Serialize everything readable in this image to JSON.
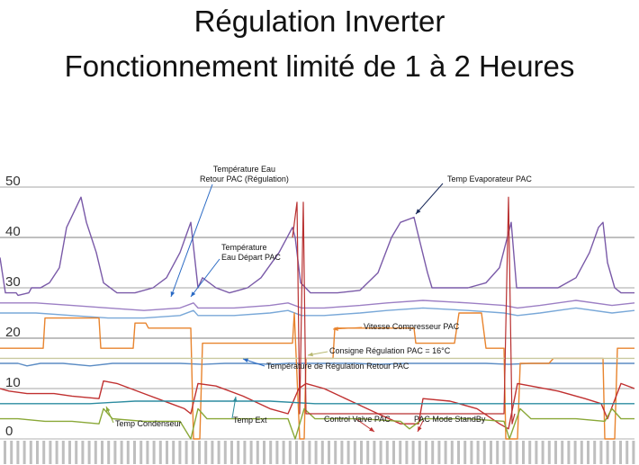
{
  "title_line1": "Régulation Inverter",
  "title_line2": "Fonctionnement limité de 1 à 2 Heures",
  "chart_data": {
    "type": "line",
    "ylim": [
      0,
      50
    ],
    "y_ticks": [
      0,
      10,
      20,
      30,
      40,
      50
    ],
    "grid": true,
    "annotations": {
      "temp_eau_retour": "Température Eau\nRetour PAC (Régulation)",
      "temp_evaporateur": "Temp Evaporateur PAC",
      "temp_eau_depart": "Température\nEau Départ PAC",
      "vitesse_compresseur": "Vitesse Compresseur PAC",
      "consigne": "Consigne Régulation PAC = 16°C",
      "temp_regulation_retour": "Température de Régulation Retour PAC",
      "temp_condenseur": "Temp Condenseur",
      "temp_ext": "Temp Ext",
      "control_valve": "Control Valve PAC",
      "mode_standby": "PAC Mode StandBy"
    },
    "series": [
      {
        "key": "evap",
        "color": "#7a5aa8",
        "points": [
          [
            0,
            36
          ],
          [
            6,
            29
          ],
          [
            18,
            29
          ],
          [
            20,
            28.5
          ],
          [
            32,
            29
          ],
          [
            35,
            30
          ],
          [
            45,
            30
          ],
          [
            55,
            31
          ],
          [
            66,
            34
          ],
          [
            74,
            42
          ],
          [
            90,
            48
          ],
          [
            96,
            43
          ],
          [
            107,
            37
          ],
          [
            115,
            31
          ],
          [
            130,
            29
          ],
          [
            150,
            29
          ],
          [
            170,
            30
          ],
          [
            185,
            32
          ],
          [
            200,
            37
          ],
          [
            208,
            41
          ],
          [
            212,
            43
          ],
          [
            220,
            30
          ],
          [
            225,
            32
          ],
          [
            240,
            30
          ],
          [
            255,
            29
          ],
          [
            265,
            29.5
          ],
          [
            275,
            30
          ],
          [
            290,
            32
          ],
          [
            310,
            37
          ],
          [
            325,
            42
          ],
          [
            328,
            40
          ],
          [
            334,
            31
          ],
          [
            345,
            29
          ],
          [
            360,
            29
          ],
          [
            375,
            29
          ],
          [
            400,
            29.5
          ],
          [
            420,
            33
          ],
          [
            435,
            40
          ],
          [
            445,
            43
          ],
          [
            460,
            44
          ],
          [
            464,
            41
          ],
          [
            475,
            33
          ],
          [
            480,
            30
          ],
          [
            495,
            30
          ],
          [
            520,
            30
          ],
          [
            540,
            31
          ],
          [
            555,
            34
          ],
          [
            568,
            43
          ],
          [
            574,
            30
          ],
          [
            590,
            30
          ],
          [
            605,
            30
          ],
          [
            620,
            30
          ],
          [
            640,
            32
          ],
          [
            655,
            37
          ],
          [
            665,
            42
          ],
          [
            670,
            43
          ],
          [
            675,
            35
          ],
          [
            683,
            30
          ],
          [
            690,
            29
          ],
          [
            705,
            29
          ]
        ]
      },
      {
        "key": "depart",
        "color": "#9c7fc4",
        "points": [
          [
            0,
            27
          ],
          [
            40,
            27
          ],
          [
            80,
            26.5
          ],
          [
            120,
            26
          ],
          [
            160,
            25.5
          ],
          [
            200,
            26
          ],
          [
            215,
            27
          ],
          [
            220,
            26
          ],
          [
            260,
            26
          ],
          [
            300,
            26.5
          ],
          [
            320,
            27
          ],
          [
            335,
            26
          ],
          [
            360,
            26
          ],
          [
            400,
            26.5
          ],
          [
            430,
            27
          ],
          [
            470,
            27.5
          ],
          [
            520,
            27
          ],
          [
            560,
            26.5
          ],
          [
            575,
            26
          ],
          [
            600,
            26.5
          ],
          [
            640,
            27.5
          ],
          [
            680,
            26.5
          ],
          [
            705,
            27
          ]
        ]
      },
      {
        "key": "retour",
        "color": "#79a8d8",
        "points": [
          [
            0,
            25
          ],
          [
            40,
            25
          ],
          [
            80,
            24.5
          ],
          [
            120,
            24
          ],
          [
            160,
            24
          ],
          [
            200,
            24.5
          ],
          [
            215,
            25.5
          ],
          [
            220,
            24.5
          ],
          [
            260,
            24.5
          ],
          [
            300,
            25
          ],
          [
            320,
            25.5
          ],
          [
            335,
            24.5
          ],
          [
            360,
            24.5
          ],
          [
            400,
            25
          ],
          [
            430,
            25.5
          ],
          [
            470,
            26
          ],
          [
            520,
            25.5
          ],
          [
            560,
            25
          ],
          [
            575,
            24.5
          ],
          [
            600,
            25
          ],
          [
            640,
            26
          ],
          [
            680,
            25
          ],
          [
            705,
            25.5
          ]
        ]
      },
      {
        "key": "reg_retour",
        "color": "#5b8cc4",
        "points": [
          [
            0,
            15
          ],
          [
            20,
            15
          ],
          [
            30,
            14.5
          ],
          [
            45,
            15
          ],
          [
            70,
            15
          ],
          [
            100,
            14.5
          ],
          [
            125,
            15
          ],
          [
            150,
            15
          ],
          [
            175,
            15
          ],
          [
            200,
            15
          ],
          [
            225,
            14.8
          ],
          [
            250,
            15
          ],
          [
            275,
            15
          ],
          [
            300,
            14.8
          ],
          [
            320,
            15
          ],
          [
            345,
            15
          ],
          [
            370,
            15
          ],
          [
            395,
            15
          ],
          [
            420,
            14.8
          ],
          [
            450,
            15
          ],
          [
            480,
            15
          ],
          [
            510,
            15
          ],
          [
            540,
            15
          ],
          [
            565,
            14.8
          ],
          [
            590,
            15
          ],
          [
            620,
            15
          ],
          [
            650,
            15
          ],
          [
            680,
            15
          ],
          [
            705,
            15
          ]
        ]
      },
      {
        "key": "vitesse",
        "color": "#e8842e",
        "points": [
          [
            0,
            18
          ],
          [
            5,
            18
          ],
          [
            20,
            18
          ],
          [
            48,
            18
          ],
          [
            50,
            24
          ],
          [
            78,
            24
          ],
          [
            100,
            24
          ],
          [
            110,
            24
          ],
          [
            112,
            18
          ],
          [
            148,
            18
          ],
          [
            150,
            23
          ],
          [
            162,
            23
          ],
          [
            165,
            22
          ],
          [
            200,
            22
          ],
          [
            212,
            22
          ],
          [
            215,
            0
          ],
          [
            222,
            0
          ],
          [
            225,
            19
          ],
          [
            300,
            19
          ],
          [
            325,
            19
          ],
          [
            327,
            25
          ],
          [
            333,
            0
          ],
          [
            338,
            0
          ],
          [
            340,
            16
          ],
          [
            370,
            16
          ],
          [
            372,
            22
          ],
          [
            445,
            22
          ],
          [
            460,
            22
          ],
          [
            462,
            19
          ],
          [
            505,
            19
          ],
          [
            510,
            25
          ],
          [
            535,
            25
          ],
          [
            540,
            18
          ],
          [
            560,
            18
          ],
          [
            562,
            0
          ],
          [
            575,
            0
          ],
          [
            578,
            15
          ],
          [
            600,
            15
          ],
          [
            610,
            15
          ],
          [
            615,
            16
          ],
          [
            650,
            16
          ],
          [
            670,
            16
          ],
          [
            672,
            0
          ],
          [
            683,
            0
          ],
          [
            686,
            18
          ],
          [
            705,
            18
          ]
        ]
      },
      {
        "key": "consigne",
        "color": "#c9c9a0",
        "points": [
          [
            0,
            16
          ],
          [
            705,
            16
          ]
        ]
      },
      {
        "key": "condenseur",
        "color": "#c03030",
        "points": [
          [
            0,
            10
          ],
          [
            10,
            9.5
          ],
          [
            30,
            9
          ],
          [
            60,
            9
          ],
          [
            80,
            8.5
          ],
          [
            110,
            8
          ],
          [
            115,
            11.5
          ],
          [
            130,
            11
          ],
          [
            160,
            9
          ],
          [
            190,
            7
          ],
          [
            205,
            6
          ],
          [
            212,
            5
          ],
          [
            220,
            11
          ],
          [
            240,
            10.5
          ],
          [
            270,
            8.5
          ],
          [
            300,
            6
          ],
          [
            320,
            5
          ],
          [
            332,
            10
          ],
          [
            340,
            11
          ],
          [
            360,
            10
          ],
          [
            390,
            7.5
          ],
          [
            420,
            5
          ],
          [
            445,
            3
          ],
          [
            465,
            3
          ],
          [
            470,
            8
          ],
          [
            500,
            7.5
          ],
          [
            530,
            6
          ],
          [
            555,
            3
          ],
          [
            565,
            2
          ],
          [
            575,
            11
          ],
          [
            590,
            10.5
          ],
          [
            620,
            9.5
          ],
          [
            650,
            8
          ],
          [
            668,
            7
          ],
          [
            675,
            4
          ],
          [
            690,
            11
          ],
          [
            705,
            10
          ]
        ]
      },
      {
        "key": "ext",
        "color": "#2d8ca0",
        "points": [
          [
            0,
            7
          ],
          [
            50,
            7
          ],
          [
            100,
            7
          ],
          [
            150,
            7.5
          ],
          [
            200,
            7.5
          ],
          [
            250,
            7.5
          ],
          [
            300,
            7.5
          ],
          [
            350,
            7
          ],
          [
            400,
            7
          ],
          [
            450,
            7
          ],
          [
            500,
            7
          ],
          [
            550,
            7
          ],
          [
            600,
            7
          ],
          [
            650,
            7
          ],
          [
            705,
            7
          ]
        ]
      },
      {
        "key": "cond_green",
        "color": "#8aa838",
        "points": [
          [
            0,
            4
          ],
          [
            20,
            4
          ],
          [
            50,
            3.5
          ],
          [
            80,
            3.5
          ],
          [
            110,
            3
          ],
          [
            115,
            6
          ],
          [
            125,
            4
          ],
          [
            160,
            3.5
          ],
          [
            200,
            3.5
          ],
          [
            212,
            0
          ],
          [
            220,
            6
          ],
          [
            230,
            4
          ],
          [
            280,
            4
          ],
          [
            320,
            4
          ],
          [
            328,
            0
          ],
          [
            338,
            6
          ],
          [
            350,
            4
          ],
          [
            400,
            4
          ],
          [
            445,
            3.5
          ],
          [
            455,
            2
          ],
          [
            470,
            4
          ],
          [
            520,
            4
          ],
          [
            560,
            3.5
          ],
          [
            566,
            0
          ],
          [
            578,
            6
          ],
          [
            590,
            4
          ],
          [
            640,
            4
          ],
          [
            672,
            3.5
          ],
          [
            680,
            6
          ],
          [
            690,
            4
          ],
          [
            705,
            4
          ]
        ]
      },
      {
        "key": "spikes",
        "color": "#b83030",
        "points": [
          [
            325,
            40
          ],
          [
            330,
            47
          ],
          [
            333,
            5
          ],
          [
            337,
            47
          ],
          [
            340,
            5
          ],
          [
            560,
            5
          ],
          [
            565,
            48
          ],
          [
            569,
            3
          ],
          [
            572,
            5
          ]
        ]
      }
    ]
  }
}
